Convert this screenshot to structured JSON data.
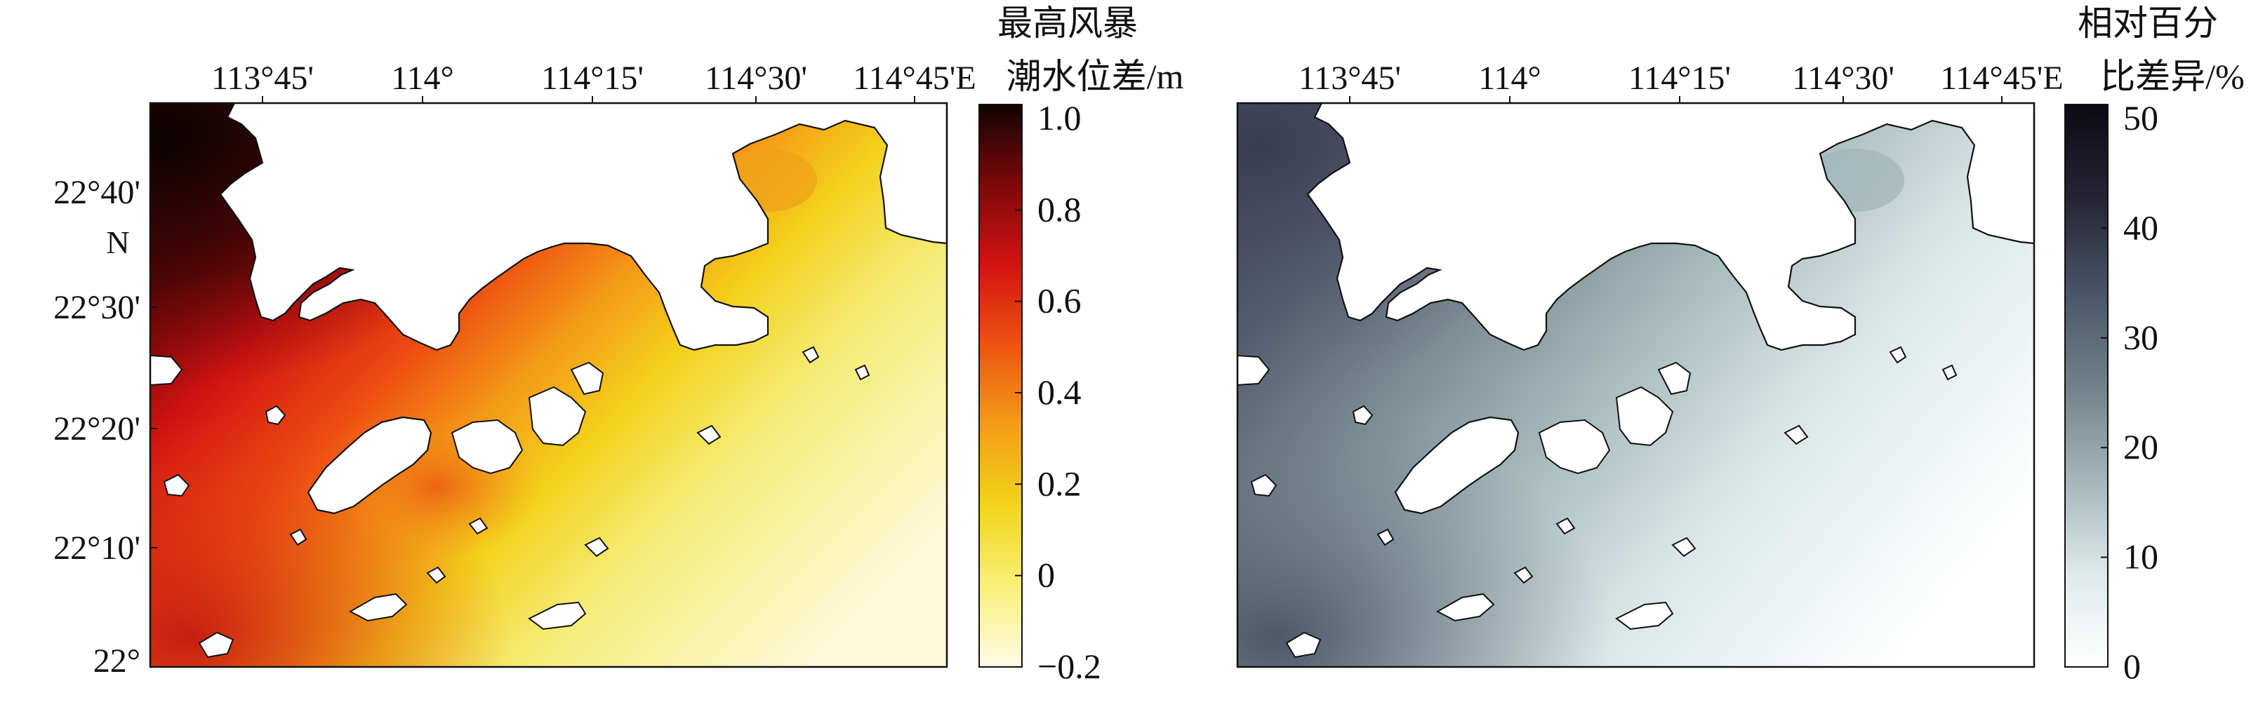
{
  "maps": [
    {
      "id": "left",
      "x_ticks": [
        "113°45'",
        "114°",
        "114°15'",
        "114°30'",
        "114°45'E"
      ],
      "y_ticks": [
        "22°40'",
        "22°30'",
        "22°20'",
        "22°10'",
        "22°"
      ],
      "y_unit_label": "N",
      "colorbar": {
        "title_line1": "最高风暴",
        "title_line2": "潮水位差/m",
        "ticks": [
          "1.0",
          "0.8",
          "0.6",
          "0.4",
          "0.2",
          "0",
          "−0.2"
        ],
        "min": -0.2,
        "max": 1.0,
        "colors": [
          "#fffbe6",
          "#f8f07a",
          "#f2d51c",
          "#f39d16",
          "#ee5412",
          "#d31313",
          "#7f0808",
          "#120404"
        ]
      }
    },
    {
      "id": "right",
      "x_ticks": [
        "113°45'",
        "114°",
        "114°15'",
        "114°30'",
        "114°45'E"
      ],
      "y_ticks": [],
      "colorbar": {
        "title_line1": "相对百分",
        "title_line2": "比差异/%",
        "ticks": [
          "50",
          "40",
          "30",
          "20",
          "10",
          "0"
        ],
        "min": 0,
        "max": 50,
        "colors": [
          "#ffffff",
          "#dfe9e9",
          "#a3b6b9",
          "#6f8289",
          "#4a5468",
          "#252434",
          "#0b0a12"
        ]
      }
    }
  ]
}
